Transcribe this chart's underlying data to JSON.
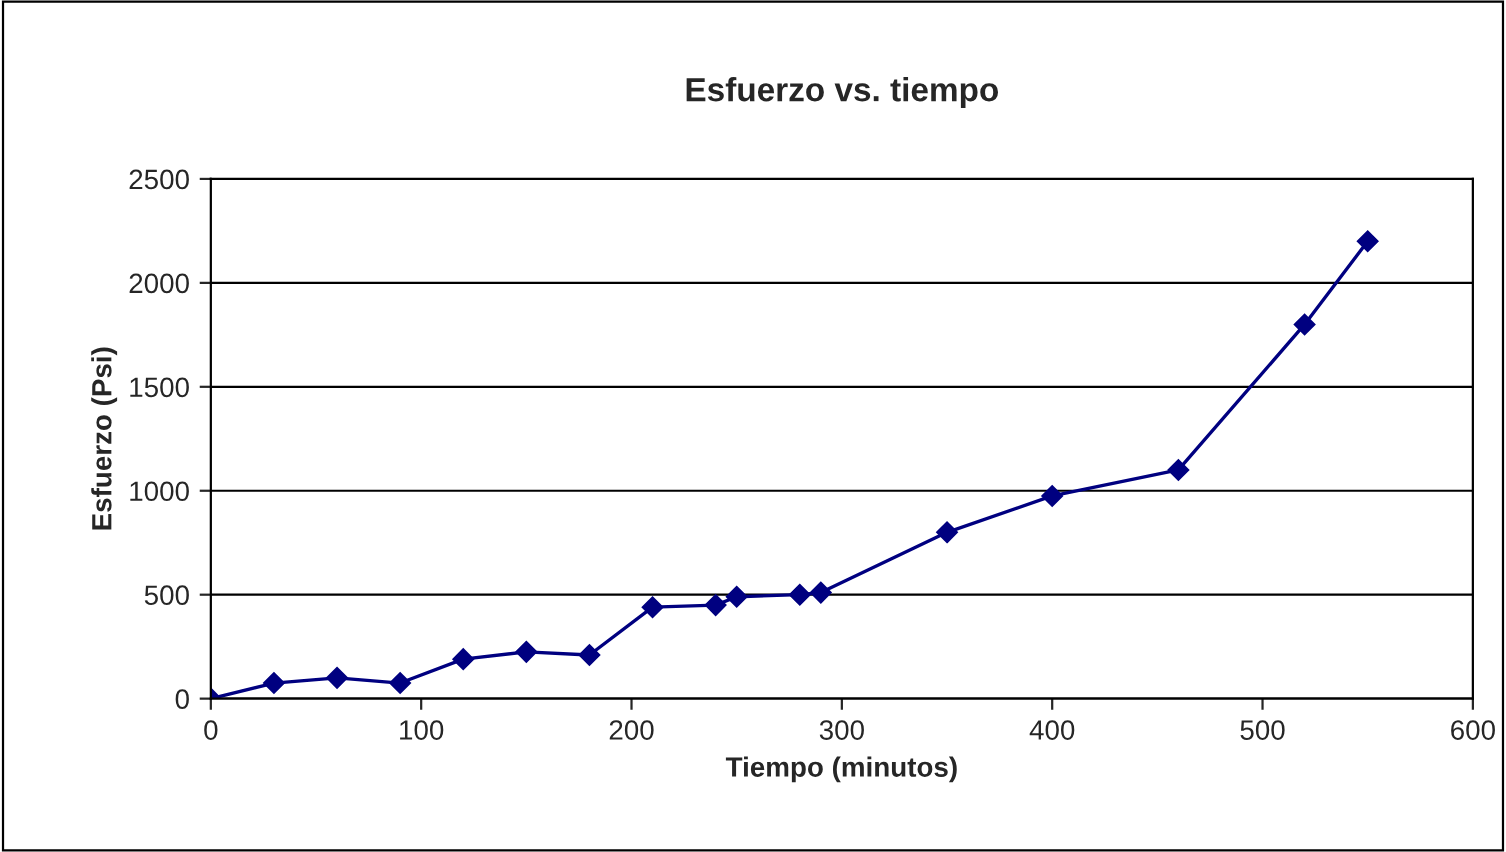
{
  "chart_data": {
    "type": "line",
    "title": "Esfuerzo vs. tiempo",
    "xlabel": "Tiempo (minutos)",
    "ylabel": "Esfuerzo (Psi)",
    "x": [
      0,
      30,
      60,
      90,
      120,
      150,
      180,
      210,
      240,
      250,
      280,
      290,
      350,
      400,
      460,
      520,
      550
    ],
    "series": [
      {
        "color": "#000080",
        "values": [
          0,
          75,
          100,
          75,
          190,
          225,
          210,
          440,
          450,
          490,
          500,
          510,
          800,
          975,
          1100,
          1800,
          2200
        ]
      }
    ],
    "xlim": [
      0,
      600
    ],
    "xticks": [
      0,
      100,
      200,
      300,
      400,
      500,
      600
    ],
    "ylim": [
      0,
      2500
    ],
    "yticks": [
      0,
      500,
      1000,
      1500,
      2000,
      2500
    ],
    "grid": "y",
    "marker": "diamond",
    "line_style": "solid",
    "legend": false
  }
}
